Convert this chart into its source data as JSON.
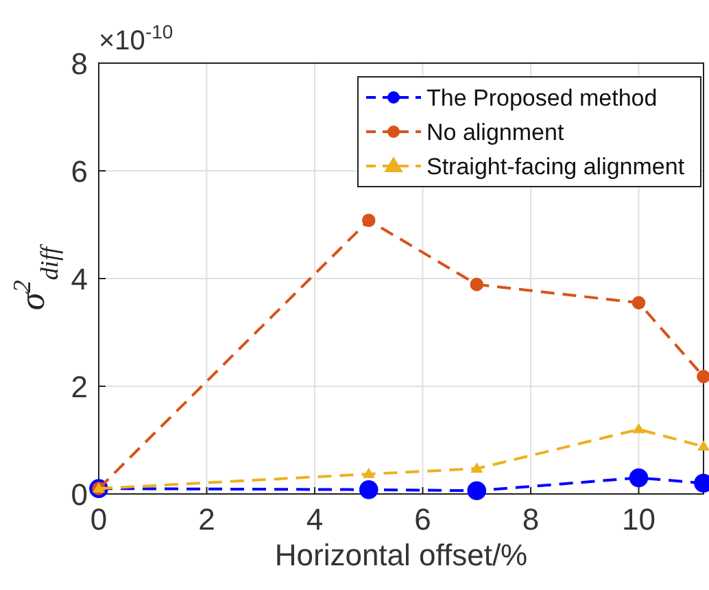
{
  "chart_data": {
    "type": "line",
    "xlabel": "Horizontal offset/%",
    "ylabel": "σ$^{2}$$_{diff}$",
    "annotations": [
      "×10$^{-10}$"
    ],
    "x": [
      0,
      5,
      7,
      10,
      11.2
    ],
    "series": [
      {
        "name": "The Proposed method",
        "color": "#0000ff",
        "values": [
          0.1,
          0.08,
          0.06,
          0.3,
          0.2
        ],
        "marker": "circle"
      },
      {
        "name": "No alignment",
        "color": "#d95319",
        "values": [
          0.1,
          5.08,
          3.89,
          3.55,
          2.18
        ],
        "marker": "circle"
      },
      {
        "name": "Straight-facing alignment",
        "color": "#edb120",
        "values": [
          0.1,
          0.37,
          0.47,
          1.2,
          0.88
        ],
        "marker": "triangle"
      }
    ],
    "xlim": [
      0,
      11.2
    ],
    "xticks": [
      0,
      2,
      4,
      6,
      8,
      10
    ],
    "ylim": [
      0,
      8
    ],
    "yticks": [
      0,
      2,
      4,
      6,
      8
    ],
    "grid": true,
    "legend": "top right",
    "line_style": "dashed"
  }
}
